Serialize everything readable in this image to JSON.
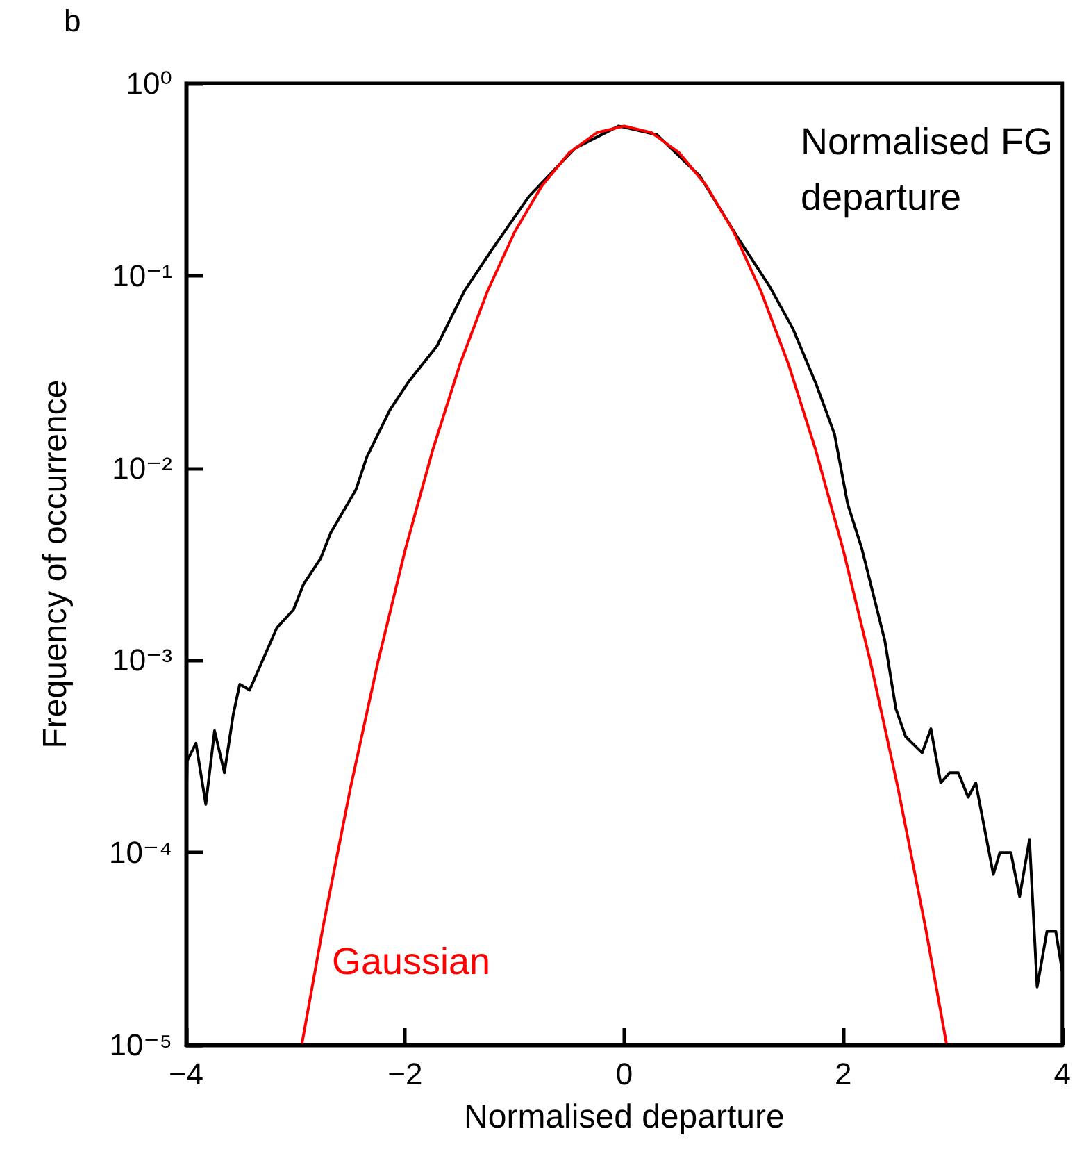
{
  "chart_data": {
    "type": "line",
    "xlabel": "Normalised departure",
    "ylabel": "Frequency of occurrence",
    "annotations": [
      "b"
    ],
    "log": "y",
    "xlim": [
      -4,
      4
    ],
    "ylim": [
      1e-05,
      1
    ],
    "xticks": [
      {
        "value": -4,
        "label": "−4"
      },
      {
        "value": -2,
        "label": "−2"
      },
      0,
      2,
      4
    ],
    "yticks": [
      {
        "value": 1e-05,
        "label": "10⁻⁵"
      },
      {
        "value": 0.0001,
        "label": "10⁻⁴"
      },
      {
        "value": 0.001,
        "label": "10⁻³"
      },
      {
        "value": 0.01,
        "label": "10⁻²"
      },
      {
        "value": 0.1,
        "label": "10⁻¹"
      },
      {
        "value": 1,
        "label": "10⁰"
      }
    ],
    "grid": false,
    "legend": false,
    "marker": "none",
    "line_style": "solid",
    "series": [
      {
        "name": "Normalised FG departure",
        "color": "#000000",
        "x": [
          -4.0,
          -3.99,
          -3.91,
          -3.82,
          -3.74,
          -3.65,
          -3.57,
          -3.51,
          -3.42,
          -3.17,
          -3.02,
          -2.93,
          -2.77,
          -2.68,
          -2.45,
          -2.35,
          -2.14,
          -1.97,
          -1.71,
          -1.46,
          -1.21,
          -0.87,
          -0.45,
          -0.05,
          0.3,
          0.69,
          1.03,
          1.33,
          1.54,
          1.75,
          1.92,
          2.04,
          2.17,
          2.38,
          2.48,
          2.57,
          2.72,
          2.8,
          2.89,
          2.97,
          3.05,
          3.14,
          3.21,
          3.37,
          3.43,
          3.53,
          3.61,
          3.7,
          3.77,
          3.86,
          3.94,
          4.0
        ],
        "values": [
          0.000146,
          0.0003,
          0.00037,
          0.000178,
          0.00043,
          0.00026,
          0.00052,
          0.00075,
          0.0007,
          0.00148,
          0.00183,
          0.00247,
          0.0034,
          0.0046,
          0.0077,
          0.0114,
          0.02,
          0.028,
          0.043,
          0.083,
          0.136,
          0.258,
          0.46,
          0.6,
          0.54,
          0.33,
          0.16,
          0.0875,
          0.053,
          0.0275,
          0.015,
          0.0065,
          0.0038,
          0.00126,
          0.00056,
          0.0004,
          0.00033,
          0.00044,
          0.00023,
          0.00026,
          0.00026,
          0.000194,
          0.00023,
          7.7e-05,
          0.0001,
          0.0001,
          5.9e-05,
          0.000117,
          2e-05,
          3.9e-05,
          3.9e-05,
          2.4e-05
        ]
      },
      {
        "name": "Gaussian",
        "color": "#ff0000",
        "x": [
          -2.94,
          -2.75,
          -2.5,
          -2.25,
          -2.0,
          -1.75,
          -1.5,
          -1.25,
          -1.0,
          -0.75,
          -0.5,
          -0.25,
          0,
          0.25,
          0.5,
          0.75,
          1.0,
          1.25,
          1.5,
          1.75,
          2.0,
          2.25,
          2.5,
          2.75,
          2.94
        ],
        "values": [
          1.03e-05,
          4.1e-05,
          0.000216,
          0.00097,
          0.00374,
          0.0123,
          0.0346,
          0.0826,
          0.169,
          0.294,
          0.437,
          0.554,
          0.6,
          0.554,
          0.437,
          0.294,
          0.169,
          0.0826,
          0.0346,
          0.0123,
          0.00374,
          0.00097,
          0.000216,
          4.1e-05,
          1.03e-05
        ]
      }
    ]
  }
}
